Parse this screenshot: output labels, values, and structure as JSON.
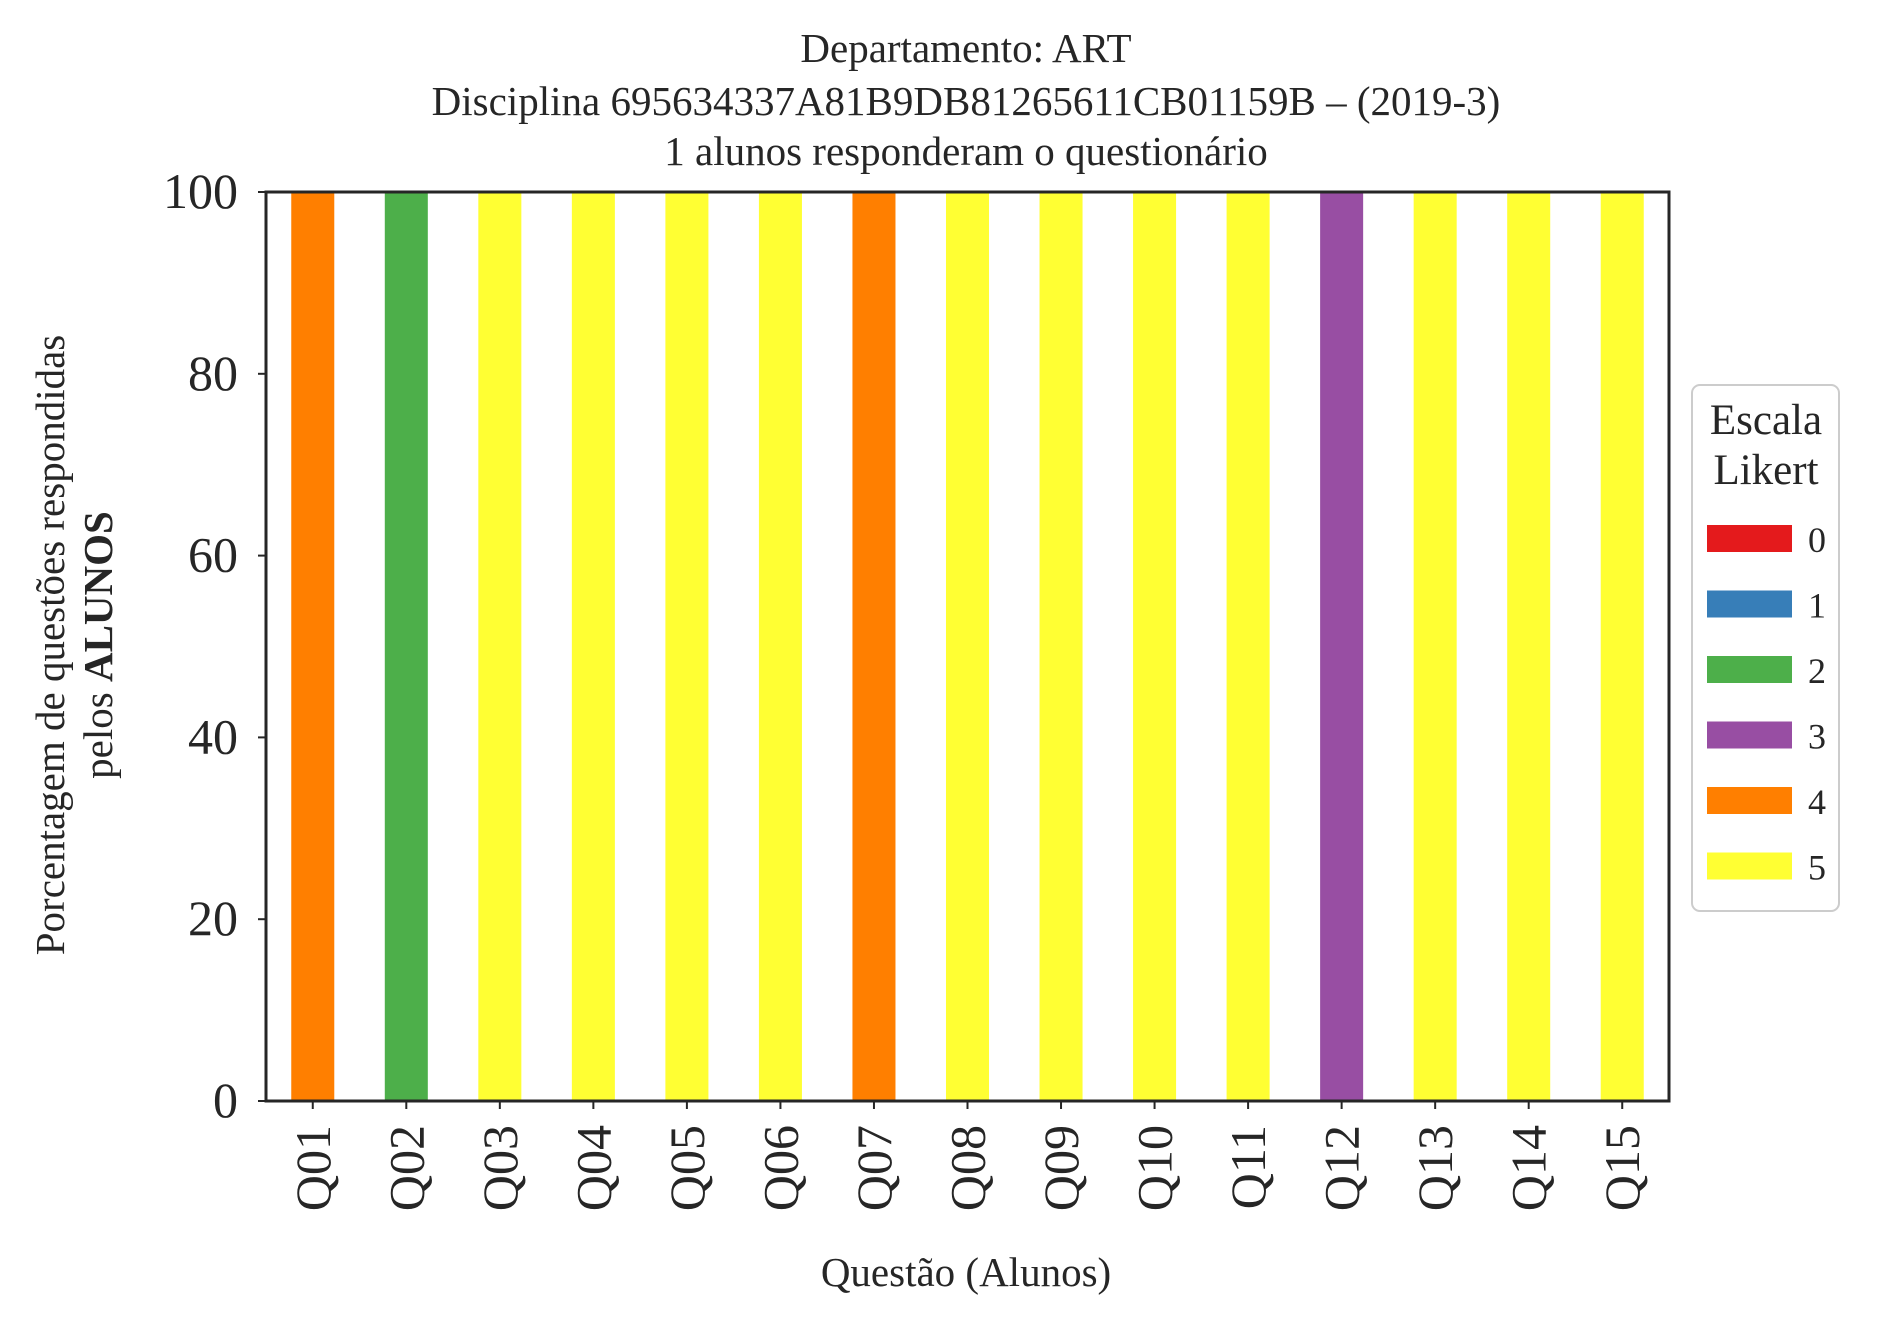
{
  "colors": {
    "0": "#e41a1c",
    "1": "#377eb8",
    "2": "#4daf4a",
    "3": "#984ea3",
    "4": "#ff7f00",
    "5": "#ffff33",
    "axis": "#262626",
    "legend_border": "#cccccc"
  },
  "chart_data": {
    "type": "bar",
    "stacked": true,
    "title_lines": [
      "Departamento: ART",
      "Disciplina 695634337A81B9DB81265611CB01159B – (2019-3)",
      "1 alunos responderam o questionário"
    ],
    "xlabel": "Questão (Alunos)",
    "ylabel_line1": "Porcentagem de questões respondidas",
    "ylabel_line2_prefix": "pelos ",
    "ylabel_line2_bold": "ALUNOS",
    "ylim": [
      0,
      100
    ],
    "yticks": [
      "0",
      "20",
      "40",
      "60",
      "80",
      "100"
    ],
    "grid": false,
    "legend_placement": "center-right outside",
    "legend_title_lines": [
      "Escala",
      "Likert"
    ],
    "categories": [
      "Q01",
      "Q02",
      "Q03",
      "Q04",
      "Q05",
      "Q06",
      "Q07",
      "Q08",
      "Q09",
      "Q10",
      "Q11",
      "Q12",
      "Q13",
      "Q14",
      "Q15"
    ],
    "series": [
      {
        "name": "0",
        "values": [
          0,
          0,
          0,
          0,
          0,
          0,
          0,
          0,
          0,
          0,
          0,
          0,
          0,
          0,
          0
        ]
      },
      {
        "name": "1",
        "values": [
          0,
          0,
          0,
          0,
          0,
          0,
          0,
          0,
          0,
          0,
          0,
          0,
          0,
          0,
          0
        ]
      },
      {
        "name": "2",
        "values": [
          0,
          100,
          0,
          0,
          0,
          0,
          0,
          0,
          0,
          0,
          0,
          0,
          0,
          0,
          0
        ]
      },
      {
        "name": "3",
        "values": [
          0,
          0,
          0,
          0,
          0,
          0,
          0,
          0,
          0,
          0,
          0,
          100,
          0,
          0,
          0
        ]
      },
      {
        "name": "4",
        "values": [
          100,
          0,
          0,
          0,
          0,
          0,
          100,
          0,
          0,
          0,
          0,
          0,
          0,
          0,
          0
        ]
      },
      {
        "name": "5",
        "values": [
          0,
          0,
          100,
          100,
          100,
          100,
          0,
          100,
          100,
          100,
          100,
          0,
          100,
          100,
          100
        ]
      }
    ]
  }
}
